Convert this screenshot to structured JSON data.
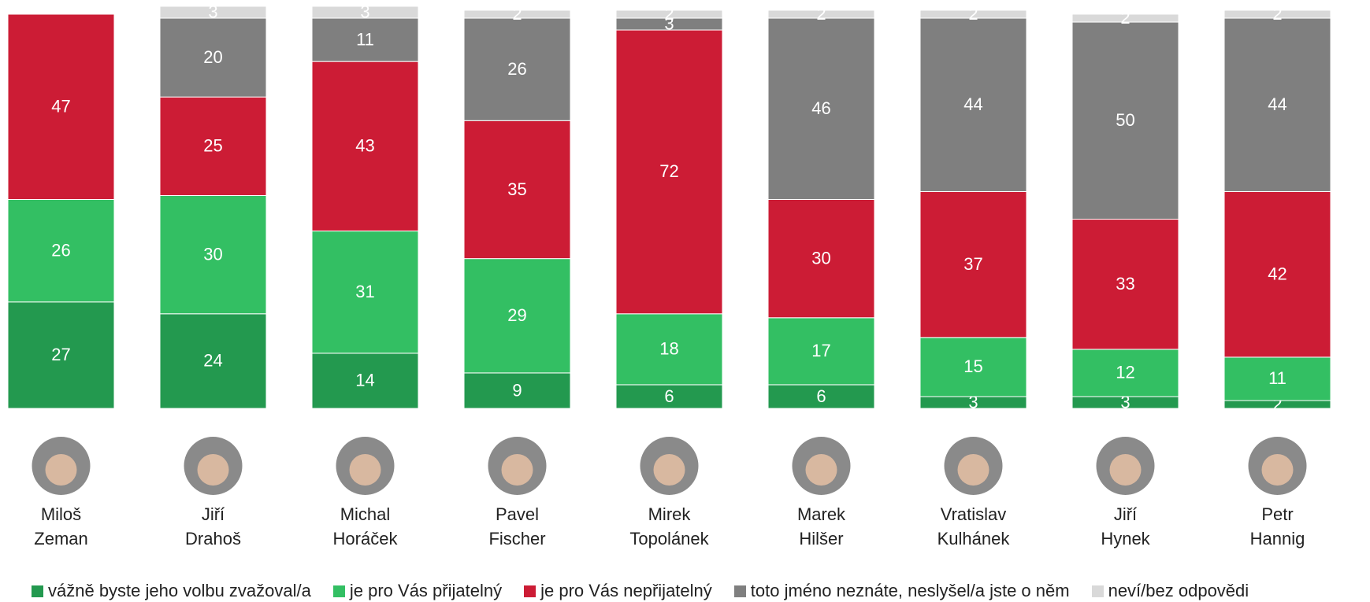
{
  "chart_data": {
    "type": "stacked-bar",
    "categories": [
      "Miloš Zeman",
      "Jiří Drahoš",
      "Michal Horáček",
      "Pavel Fischer",
      "Mirek Topolánek",
      "Marek Hilšer",
      "Vratislav Kulhánek",
      "Jiří Hynek",
      "Petr Hannig"
    ],
    "series": [
      {
        "name": "vážně byste jeho volbu zvažoval/a",
        "color": "#23994f",
        "values": [
          27,
          24,
          14,
          9,
          6,
          6,
          3,
          3,
          2
        ]
      },
      {
        "name": "je pro Vás přijatelný",
        "color": "#33bf63",
        "values": [
          26,
          30,
          31,
          29,
          18,
          17,
          15,
          12,
          11
        ]
      },
      {
        "name": "je pro Vás nepřijatelný",
        "color": "#cc1c35",
        "values": [
          47,
          25,
          43,
          35,
          72,
          30,
          37,
          33,
          42
        ]
      },
      {
        "name": "toto jméno neznáte, neslyšel/a jste o něm",
        "color": "#7f7f7f",
        "values": [
          null,
          20,
          11,
          26,
          3,
          46,
          44,
          50,
          44
        ]
      },
      {
        "name": "neví/bez odpovědi",
        "color": "#d9d9d9",
        "values": [
          null,
          3,
          3,
          2,
          2,
          2,
          2,
          2,
          2
        ]
      }
    ],
    "ylim": [
      0,
      102
    ]
  }
}
